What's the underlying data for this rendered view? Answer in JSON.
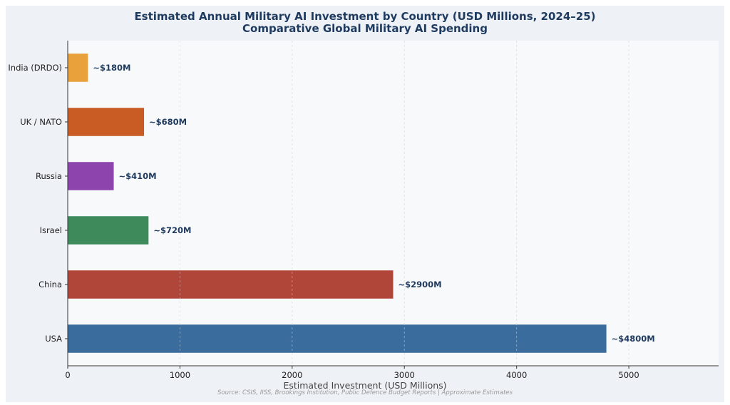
{
  "chart_data": {
    "type": "bar",
    "orientation": "horizontal",
    "title": "Estimated Annual Military AI Investment by Country (USD Millions, 2024–25)",
    "subtitle": "Comparative Global Military AI Spending",
    "xlabel": "Estimated Investment (USD Millions)",
    "ylabel": "",
    "categories": [
      "India (DRDO)",
      "UK / NATO",
      "Russia",
      "Israel",
      "China",
      "USA"
    ],
    "values": [
      180,
      680,
      410,
      720,
      2900,
      4800
    ],
    "data_labels": [
      "~$180M",
      "~$680M",
      "~$410M",
      "~$720M",
      "~$2900M",
      "~$4800M"
    ],
    "colors": [
      "#e9a23b",
      "#c95b24",
      "#8e44ad",
      "#3e8a5a",
      "#b0453a",
      "#3a6d9e"
    ],
    "xlim": [
      0,
      5800
    ],
    "xticks": [
      0,
      1000,
      2000,
      3000,
      4000,
      5000
    ],
    "grid": "x-dashed",
    "legend": "none"
  },
  "source_note": "Source: CSIS, IISS, Brookings Institution, Public Defence Budget Reports | Approximate Estimates"
}
